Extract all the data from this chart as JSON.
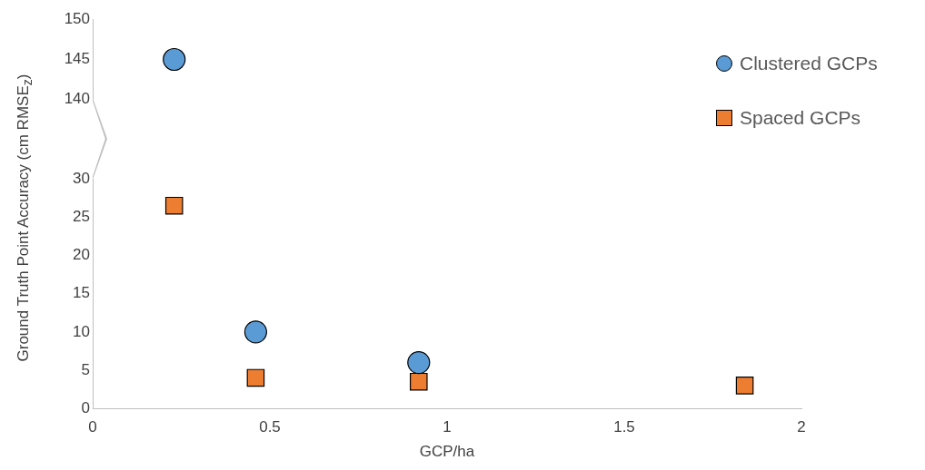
{
  "chart_data": [
    {
      "type": "scatter",
      "xlim": [
        0,
        2
      ],
      "ylim": [
        140,
        150
      ],
      "yticks": [
        140,
        145,
        150
      ],
      "tick_labels": "y",
      "grid": false,
      "series": [
        {
          "color": "#5b9bd5",
          "marker": "circle",
          "x": [
            0.23
          ],
          "values": [
            145
          ]
        }
      ]
    },
    {
      "type": "scatter",
      "xlabel": "GCP/ha",
      "ylabel": "Ground Truth Point Accuracy (cm RMSE$_{z}$)",
      "xlim": [
        0,
        2
      ],
      "xticks": [
        0,
        0.5,
        1,
        1.5,
        2
      ],
      "ylim": [
        0,
        30
      ],
      "yticks": [
        0,
        5,
        10,
        15,
        20,
        25,
        30
      ],
      "grid": false,
      "legend": "right",
      "series": [
        {
          "name": "Clustered GCPs",
          "color": "#5b9bd5",
          "marker": "circle",
          "x": [
            0.46,
            0.92
          ],
          "values": [
            10,
            6
          ]
        },
        {
          "name": "Spaced GCPs",
          "color": "#ed7d31",
          "marker": "square",
          "x": [
            0.23,
            0.46,
            0.92,
            1.84
          ],
          "values": [
            26.5,
            4,
            3.5,
            3
          ]
        }
      ]
    }
  ]
}
